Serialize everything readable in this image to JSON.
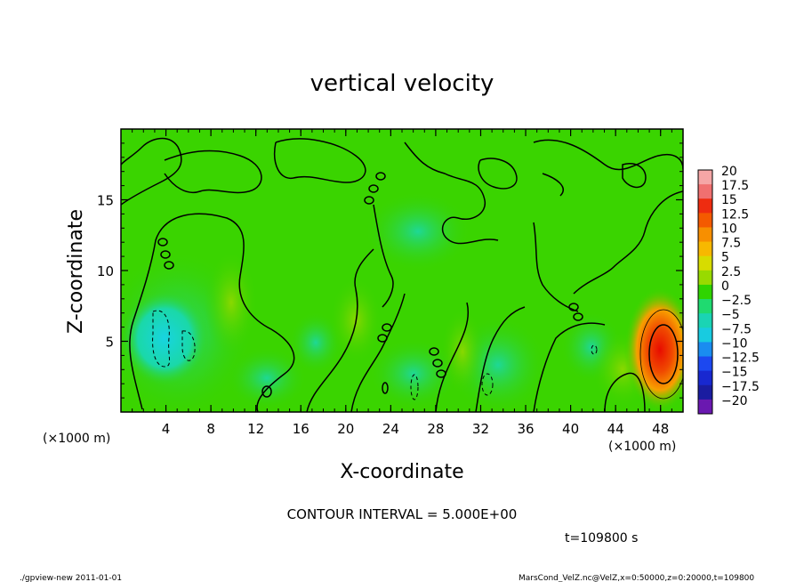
{
  "chart_data": {
    "type": "heatmap",
    "title": "vertical velocity",
    "xlabel": "X-coordinate",
    "ylabel": "Z-coordinate",
    "x_units_left": "(×1000 m)",
    "x_units_right": "(×1000 m)",
    "xlim": [
      0,
      50
    ],
    "ylim": [
      0,
      20
    ],
    "x_ticks": [
      4,
      8,
      12,
      16,
      20,
      24,
      28,
      32,
      36,
      40,
      44,
      48
    ],
    "x_tick_labels": [
      "4",
      "8",
      "12",
      "16",
      "20",
      "24",
      "28",
      "32",
      "36",
      "40",
      "44",
      "48"
    ],
    "y_ticks": [
      5,
      10,
      15
    ],
    "y_tick_labels": [
      "5",
      "10",
      "15"
    ],
    "colorbar": {
      "min": -20,
      "max": 20,
      "labels": [
        "20",
        "17.5",
        "15",
        "12.5",
        "10",
        "7.5",
        "5",
        "2.5",
        "0",
        "−2.5",
        "−5",
        "−7.5",
        "−10",
        "−12.5",
        "−15",
        "−17.5",
        "−20"
      ],
      "colors": [
        "#f5a6a6",
        "#f07070",
        "#ee2c10",
        "#f45a00",
        "#f78f00",
        "#f7b800",
        "#d7dc00",
        "#98da00",
        "#2fd400",
        "#1fda70",
        "#1ad4b4",
        "#18cbe0",
        "#1a8cf0",
        "#1c48f0",
        "#1828d0",
        "#1a1ca0",
        "#6a18b0"
      ]
    },
    "features": [
      {
        "kind": "max",
        "x": 48.2,
        "z": 4.2,
        "value": 15
      },
      {
        "kind": "min",
        "x": 4.5,
        "z": 5.5,
        "value": -7.5
      },
      {
        "kind": "min",
        "x": 33,
        "z": 2,
        "value": -5
      }
    ],
    "contour_interval_text": "CONTOUR INTERVAL = 5.000E+00",
    "time_text": "t=109800 s"
  },
  "footer": {
    "left": "./gpview-new  2011-01-01",
    "right": "MarsCond_VelZ.nc@VelZ,x=0:50000,z=0:20000,t=109800"
  }
}
